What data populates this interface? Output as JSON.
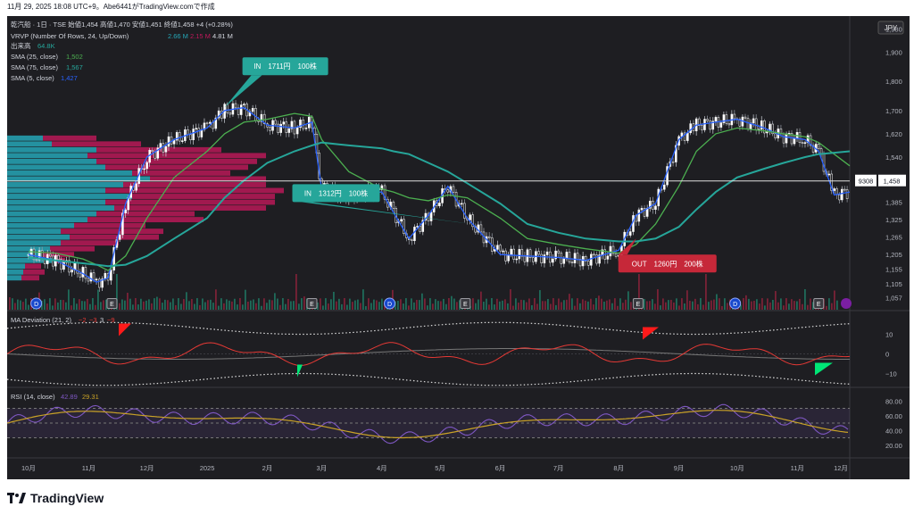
{
  "header_text": "11月 29, 2025 18:08 UTC+9。Abe6441がTradingView.comで作成",
  "legend": {
    "line1": "乾汽船 · 1日 · TSE  始値1,454  高値1,470  安値1,451  終値1,458  +4 (+0.28%)",
    "vrvp_label": "VRVP (Number Of Rows, 24, Up/Down)",
    "vrvp_v1": "2.66 M",
    "vrvp_v2": "2.15 M",
    "vrvp_v3": "4.81 M",
    "volume_label": "出来高",
    "volume_val": "64.8K",
    "sma25_label": "SMA (25, close)",
    "sma25_val": "1,502",
    "sma75_label": "SMA (75, close)",
    "sma75_val": "1,567",
    "sma5_label": "SMA (5, close)",
    "sma5_val": "1,427"
  },
  "currency": "JPY",
  "y_ticks": [
    "1,980",
    "1,900",
    "1,800",
    "1,700",
    "1,620",
    "1,540",
    "1,458",
    "1,385",
    "1,325",
    "1,265",
    "1,205",
    "1,155",
    "1,105",
    "1,057"
  ],
  "price_badge": {
    "left": "9308",
    "right": "1,458"
  },
  "x_ticks": [
    "10月",
    "11月",
    "12月",
    "2025",
    "2月",
    "3月",
    "4月",
    "5月",
    "6月",
    "7月",
    "8月",
    "9月",
    "10月",
    "11月",
    "12月"
  ],
  "callouts": [
    {
      "text": "IN　1711円　100株",
      "kind": "in"
    },
    {
      "text": "IN　1312円　100株",
      "kind": "in"
    },
    {
      "text": "OUT　1260円　200株",
      "kind": "out"
    }
  ],
  "events": [
    "D",
    "E",
    "E",
    "D",
    "E",
    "E",
    "D",
    "E"
  ],
  "ma_dev": {
    "label": "MA Deviation (21, 2)",
    "v1": "−2",
    "v2": "−3",
    "v3": "3",
    "v4": "−9",
    "ticks": [
      "10",
      "0",
      "−10"
    ]
  },
  "rsi": {
    "label": "RSI (14, close)",
    "v1": "42.89",
    "v2": "29.31",
    "ticks": [
      "80.00",
      "60.00",
      "40.00",
      "20.00"
    ]
  },
  "brand": "TradingView",
  "colors": {
    "bg": "#1e1e22",
    "up": "#2962ff",
    "sma5": "#4caf50",
    "sma25": "#26a69a",
    "in": "#26a69a",
    "out": "#c62839",
    "rsi": "#7e57c2",
    "rsi_ma": "#c9a227",
    "vp_up": "#26a6b6",
    "vp_down": "#c2185b"
  },
  "chart_data": {
    "type": "line",
    "title": "乾汽船 · 1日 · TSE",
    "x_range": [
      "2024-09-20",
      "2025-11-28"
    ],
    "y_range": [
      1040,
      2000
    ],
    "x": [
      "2024-10-01",
      "2024-10-15",
      "2024-10-29",
      "2024-11-05",
      "2024-11-11",
      "2024-11-20",
      "2024-12-01",
      "2024-12-15",
      "2025-01-01",
      "2025-01-10",
      "2025-01-20",
      "2025-02-01",
      "2025-02-15",
      "2025-02-24",
      "2025-03-01",
      "2025-03-15",
      "2025-04-01",
      "2025-04-07",
      "2025-04-15",
      "2025-04-25",
      "2025-05-05",
      "2025-05-15",
      "2025-06-01",
      "2025-06-15",
      "2025-07-01",
      "2025-07-15",
      "2025-08-01",
      "2025-08-10",
      "2025-08-20",
      "2025-09-01",
      "2025-09-10",
      "2025-09-20",
      "2025-10-01",
      "2025-10-15",
      "2025-10-25",
      "2025-11-05",
      "2025-11-12",
      "2025-11-20",
      "2025-11-28"
    ],
    "series": [
      {
        "name": "SMA (5, close)",
        "values": [
          1205,
          1185,
          1140,
          1110,
          1125,
          1380,
          1540,
          1600,
          1640,
          1700,
          1710,
          1650,
          1640,
          1660,
          1430,
          1410,
          1420,
          1350,
          1260,
          1340,
          1440,
          1330,
          1205,
          1200,
          1195,
          1185,
          1220,
          1340,
          1380,
          1600,
          1650,
          1660,
          1670,
          1640,
          1610,
          1600,
          1560,
          1410,
          1420
        ]
      },
      {
        "name": "SMA (25, close)",
        "values": [
          1215,
          1210,
          1190,
          1170,
          1150,
          1200,
          1330,
          1470,
          1560,
          1620,
          1660,
          1670,
          1690,
          1680,
          1600,
          1490,
          1430,
          1420,
          1400,
          1390,
          1410,
          1400,
          1330,
          1260,
          1240,
          1225,
          1210,
          1240,
          1310,
          1440,
          1560,
          1620,
          1640,
          1630,
          1620,
          1610,
          1590,
          1550,
          1510
        ]
      },
      {
        "name": "SMA (75, close)",
        "values": [
          1195,
          1185,
          1175,
          1170,
          1165,
          1170,
          1200,
          1260,
          1330,
          1400,
          1460,
          1520,
          1560,
          1580,
          1590,
          1580,
          1570,
          1560,
          1550,
          1520,
          1490,
          1450,
          1380,
          1310,
          1280,
          1260,
          1250,
          1250,
          1260,
          1300,
          1360,
          1420,
          1470,
          1500,
          1520,
          1540,
          1550,
          1555,
          1560
        ]
      }
    ],
    "trades": [
      {
        "date": "2025-01-10",
        "price": 1711,
        "label": "IN　1711円　100株"
      },
      {
        "date": "2025-05-15",
        "price": 1312,
        "label": "IN　1312円　100株"
      },
      {
        "date": "2025-08-10",
        "price": 1260,
        "label": "OUT　1260円　200株"
      }
    ],
    "last_price": 1458,
    "ylabel": "JPY"
  }
}
